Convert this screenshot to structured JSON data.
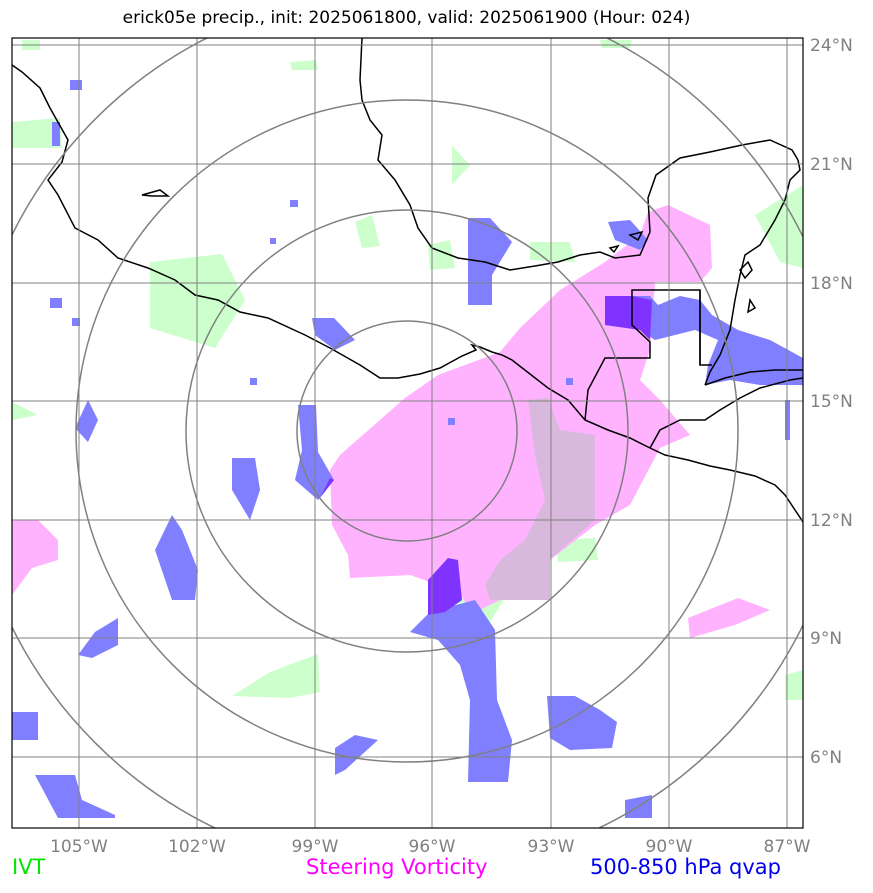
{
  "title": "erick05e precip., init: 2025061800, valid: 2025061900 (Hour: 024)",
  "axes": {
    "lon_labels": [
      "105°W",
      "102°W",
      "99°W",
      "96°W",
      "93°W",
      "90°W",
      "87°W"
    ],
    "lat_labels": [
      "24°N",
      "21°N",
      "18°N",
      "15°N",
      "12°N",
      "9°N",
      "6°N"
    ]
  },
  "legend": {
    "ivt": {
      "label": "IVT",
      "color": "#00e600"
    },
    "vorticity": {
      "label": "Steering Vorticity",
      "color": "#ff00ff"
    },
    "qvap": {
      "label": "500-850 hPa qvap",
      "color": "#0000ee"
    }
  },
  "layers": {
    "ivt_fill": "#ccffcc",
    "vorticity_fill": "#ffb3ff",
    "qvap_fill": "#7f7fff",
    "overlap_fill": "#8033ff",
    "grid": "#808080",
    "range_rings": "#808080",
    "coastline": "#000000"
  },
  "map_extent": {
    "lon": [
      -106.6,
      -86.6
    ],
    "lat": [
      4.3,
      24.3
    ]
  },
  "storm_center": {
    "lon": -96.7,
    "lat": 14.3
  }
}
